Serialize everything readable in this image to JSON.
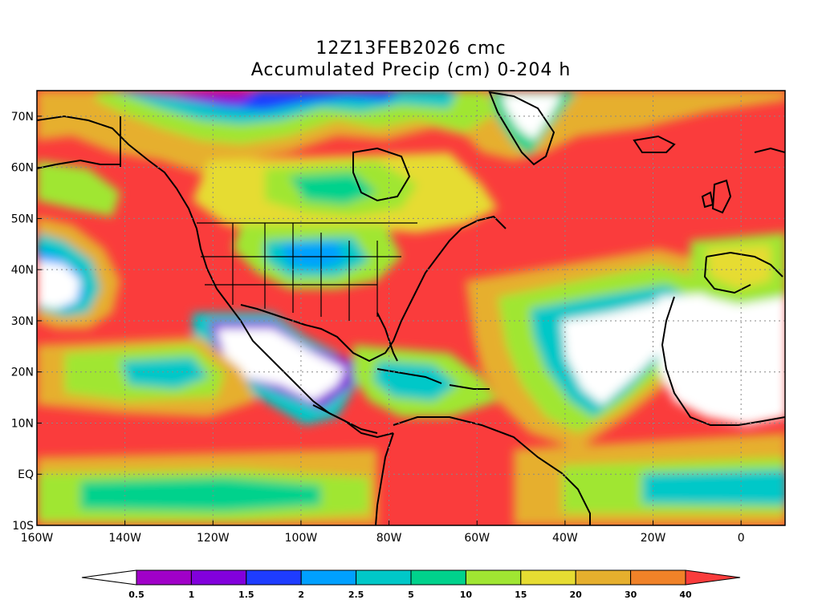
{
  "title_line1": "12Z13FEB2026 cmc",
  "title_line2": "Accumulated Precip (cm) 0-204 h",
  "map": {
    "lon_range": [
      -160,
      10
    ],
    "lat_range": [
      -10,
      75
    ],
    "x_ticks": [
      {
        "value": -160,
        "label": "160W"
      },
      {
        "value": -140,
        "label": "140W"
      },
      {
        "value": -120,
        "label": "120W"
      },
      {
        "value": -100,
        "label": "100W"
      },
      {
        "value": -80,
        "label": "80W"
      },
      {
        "value": -60,
        "label": "60W"
      },
      {
        "value": -40,
        "label": "40W"
      },
      {
        "value": -20,
        "label": "20W"
      },
      {
        "value": 0,
        "label": "0"
      }
    ],
    "y_ticks": [
      {
        "value": 70,
        "label": "70N"
      },
      {
        "value": 60,
        "label": "60N"
      },
      {
        "value": 50,
        "label": "50N"
      },
      {
        "value": 40,
        "label": "40N"
      },
      {
        "value": 30,
        "label": "30N"
      },
      {
        "value": 20,
        "label": "20N"
      },
      {
        "value": 10,
        "label": "10N"
      },
      {
        "value": 0,
        "label": "EQ"
      },
      {
        "value": -10,
        "label": "10S"
      }
    ],
    "grid": "dotted"
  },
  "colorbar": {
    "levels": [
      "0.5",
      "1",
      "1.5",
      "2",
      "2.5",
      "5",
      "10",
      "15",
      "20",
      "30",
      "40"
    ],
    "colors": [
      "#ffffff",
      "#a000c8",
      "#8200dc",
      "#1e3cff",
      "#00a0ff",
      "#00c8c8",
      "#00d28c",
      "#a0e632",
      "#e6dc32",
      "#e6af2d",
      "#f08228",
      "#fa3c3c"
    ]
  }
}
